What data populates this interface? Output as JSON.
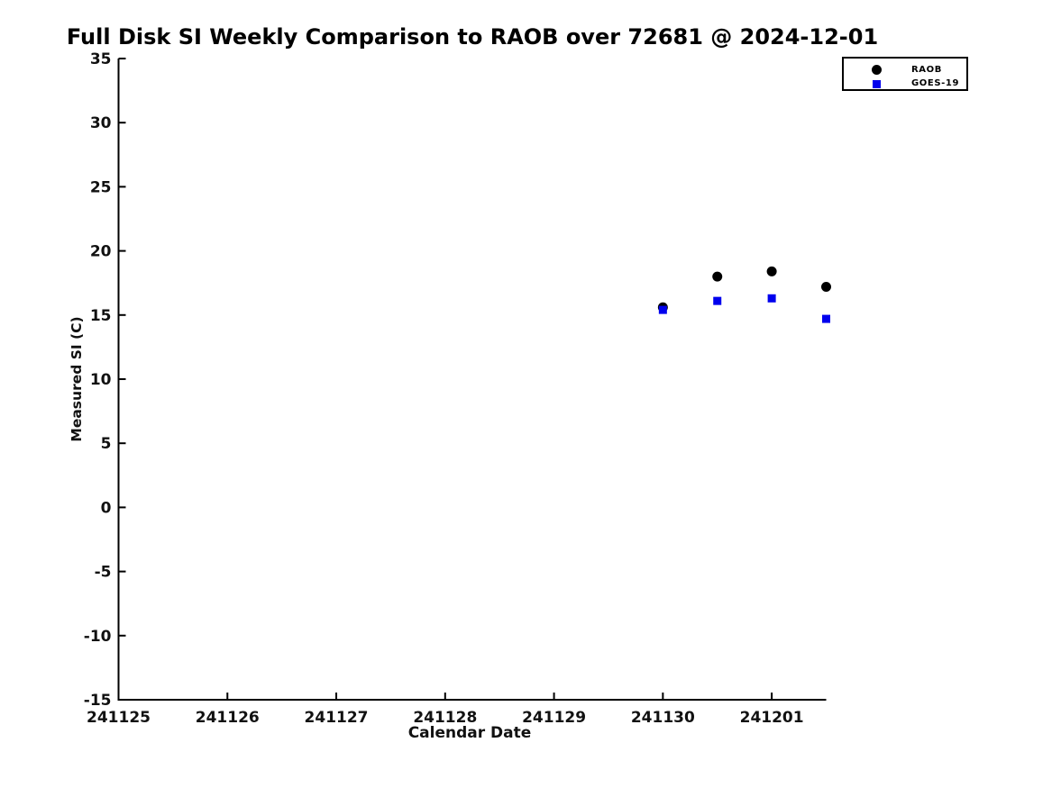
{
  "page": {
    "background": "#ffffff"
  },
  "chart_data": {
    "type": "scatter",
    "title": "Full Disk SI Weekly Comparison to RAOB over 72681 @ 2024-12-01",
    "xlabel": "Calendar Date",
    "ylabel": "Measured SI (C)",
    "x_tick_labels": [
      "241125",
      "241126",
      "241127",
      "241128",
      "241129",
      "241130",
      "241201"
    ],
    "x_tick_positions": [
      0,
      1,
      2,
      3,
      4,
      5,
      6
    ],
    "xlim": [
      0,
      6.5
    ],
    "ylim": [
      -15,
      35
    ],
    "y_ticks": [
      35,
      30,
      25,
      20,
      15,
      10,
      5,
      0,
      -5,
      -10,
      -15
    ],
    "grid": false,
    "axis_color": "#000000",
    "legend": {
      "position": "top-right",
      "entries": [
        "RAOB",
        "GOES-19"
      ]
    },
    "series": [
      {
        "name": "RAOB",
        "marker": "circle",
        "color": "#000000",
        "points": [
          {
            "x": 5.0,
            "y": 15.6
          },
          {
            "x": 5.5,
            "y": 18.0
          },
          {
            "x": 6.0,
            "y": 18.4
          },
          {
            "x": 6.5,
            "y": 17.2
          }
        ]
      },
      {
        "name": "GOES-19",
        "marker": "square",
        "color": "#0000ee",
        "points": [
          {
            "x": 5.0,
            "y": 15.4
          },
          {
            "x": 5.5,
            "y": 16.1
          },
          {
            "x": 6.0,
            "y": 16.3
          },
          {
            "x": 6.5,
            "y": 14.7
          }
        ]
      }
    ]
  }
}
